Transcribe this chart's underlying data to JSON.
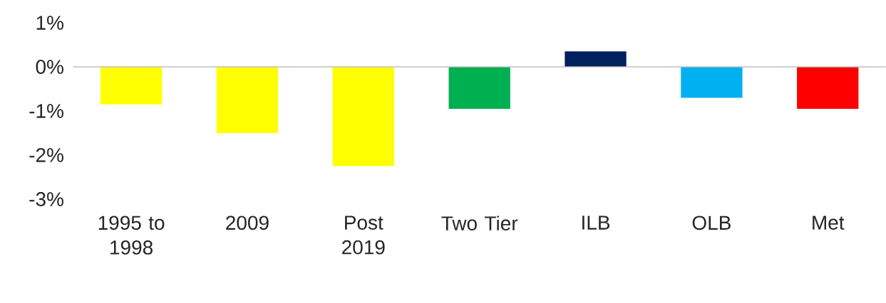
{
  "chart_data": {
    "type": "bar",
    "categories": [
      "1995 to 1998",
      "2009",
      "Post 2019",
      "Two Tier",
      "ILB",
      "OLB",
      "Met"
    ],
    "values": [
      -0.85,
      -1.5,
      -2.25,
      -0.95,
      0.35,
      -0.7,
      -0.95
    ],
    "colors": [
      "#ffff00",
      "#ffff00",
      "#ffff00",
      "#00b050",
      "#002060",
      "#00b0f0",
      "#ff0000"
    ],
    "ylim": [
      -3,
      1
    ],
    "yticks": [
      {
        "value": 1,
        "label": "1%"
      },
      {
        "value": 0,
        "label": "0%"
      },
      {
        "value": -1,
        "label": "-1%"
      },
      {
        "value": -2,
        "label": "-2%"
      },
      {
        "value": -3,
        "label": "-3%"
      }
    ]
  }
}
